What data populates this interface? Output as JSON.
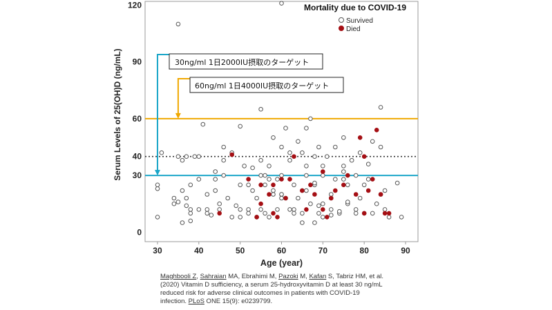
{
  "chart_data": {
    "type": "scatter",
    "title": "Mortality due to COVID-19",
    "xlabel": "Age (year)",
    "ylabel": "Serum Levels of 25(OH)D (ng/mL)",
    "xlim": [
      27,
      93
    ],
    "ylim": [
      -5,
      122
    ],
    "xticks": [
      30,
      40,
      50,
      60,
      70,
      80,
      90
    ],
    "yticks": [
      0,
      30,
      40,
      60,
      90,
      120
    ],
    "grid": false,
    "legend_position": "top-right",
    "reference_lines": [
      {
        "y": 60,
        "style": "solid",
        "color": "#f0a800"
      },
      {
        "y": 40,
        "style": "dotted",
        "color": "#333333"
      },
      {
        "y": 30,
        "style": "solid",
        "color": "#19a5c8"
      }
    ],
    "annotations": [
      {
        "text": "30ng/ml 1日2000IU摂取のターゲット",
        "arrow_x": 30,
        "arrow_to_y": 30,
        "color": "#19a5c8"
      },
      {
        "text": "60ng/ml  1日4000IU摂取のターゲット",
        "arrow_x": 35,
        "arrow_to_y": 60,
        "color": "#f0a800"
      }
    ],
    "series": [
      {
        "name": "Survived",
        "color": "#555555",
        "x": [
          30,
          30,
          30,
          31,
          34,
          34,
          35,
          35,
          36,
          36,
          36,
          37,
          37,
          38,
          38,
          38,
          39,
          40,
          40,
          41,
          42,
          42,
          43,
          44,
          44,
          45,
          46,
          46,
          47,
          48,
          49,
          50,
          50,
          51,
          52,
          52,
          53,
          53,
          54,
          54,
          55,
          55,
          56,
          56,
          57,
          57,
          58,
          58,
          59,
          59,
          60,
          60,
          60,
          61,
          61,
          62,
          62,
          63,
          63,
          64,
          65,
          65,
          66,
          66,
          67,
          67,
          68,
          68,
          69,
          69,
          70,
          70,
          71,
          72,
          72,
          73,
          73,
          74,
          75,
          75,
          76,
          76,
          77,
          78,
          78,
          79,
          79,
          80,
          81,
          82,
          82,
          83,
          84,
          84,
          85,
          86,
          88,
          89,
          35,
          37,
          38,
          42,
          44,
          46,
          48,
          52,
          55,
          57,
          60,
          63,
          66,
          68,
          72,
          75,
          78,
          81,
          84,
          45,
          50,
          55,
          60,
          65,
          70,
          75,
          80,
          85,
          60,
          65,
          70,
          50,
          40,
          56,
          58,
          62,
          64,
          66,
          68,
          69,
          72,
          74,
          76
        ],
        "y": [
          25,
          23,
          8,
          42,
          15,
          18,
          16,
          40,
          22,
          5,
          38,
          40,
          18,
          10,
          25,
          12,
          40,
          28,
          12,
          57,
          10,
          20,
          9,
          28,
          32,
          12,
          45,
          38,
          18,
          42,
          14,
          56,
          12,
          35,
          25,
          12,
          34,
          22,
          18,
          8,
          65,
          30,
          10,
          25,
          35,
          8,
          50,
          20,
          12,
          28,
          121,
          45,
          30,
          55,
          18,
          42,
          38,
          12,
          25,
          48,
          22,
          10,
          55,
          35,
          60,
          15,
          40,
          25,
          10,
          45,
          30,
          8,
          40,
          20,
          12,
          28,
          45,
          10,
          50,
          32,
          15,
          25,
          38,
          10,
          30,
          42,
          18,
          25,
          36,
          10,
          48,
          15,
          66,
          45,
          22,
          8,
          26,
          8,
          110,
          14,
          6,
          12,
          22,
          30,
          8,
          10,
          12,
          28,
          20,
          10,
          22,
          5,
          18,
          35,
          12,
          28,
          20,
          15,
          8,
          38,
          18,
          42,
          15,
          28,
          10,
          12,
          20,
          5,
          35,
          25,
          40,
          30,
          22,
          12,
          18,
          30,
          26,
          14,
          9,
          11,
          16
        ]
      },
      {
        "name": "Died",
        "color": "#a50f14",
        "x": [
          45,
          48,
          52,
          54,
          55,
          57,
          58,
          59,
          60,
          61,
          63,
          65,
          66,
          67,
          68,
          70,
          71,
          72,
          73,
          76,
          78,
          79,
          80,
          81,
          82,
          83,
          84,
          85,
          86,
          55,
          58,
          62,
          70,
          75,
          80
        ],
        "y": [
          10,
          41,
          28,
          8,
          25,
          20,
          25,
          8,
          28,
          18,
          40,
          22,
          12,
          25,
          20,
          32,
          8,
          18,
          22,
          30,
          20,
          50,
          40,
          22,
          28,
          54,
          20,
          10,
          10,
          15,
          10,
          28,
          12,
          25,
          10
        ]
      }
    ]
  },
  "citation": {
    "authors_1": "Maghbooli Z",
    "sep_1": ", ",
    "authors_2": "Sahraian",
    "authors_3": " MA, Ebrahimi M, ",
    "authors_4": "Pazoki",
    "authors_5": " M, ",
    "authors_6": "Kafan",
    "authors_7": " S, Tabriz HM, et al.",
    "line_2": "(2020) Vitamin D sufficiency, a serum 25-hydroxyvitamin D at least 30 ng/mL",
    "line_3": "reduced risk for adverse clinical outcomes in patients with COVID-19",
    "line_4_a": "infection. ",
    "line_4_b": "PLoS",
    "line_4_c": " ONE 15(9): e0239799."
  }
}
